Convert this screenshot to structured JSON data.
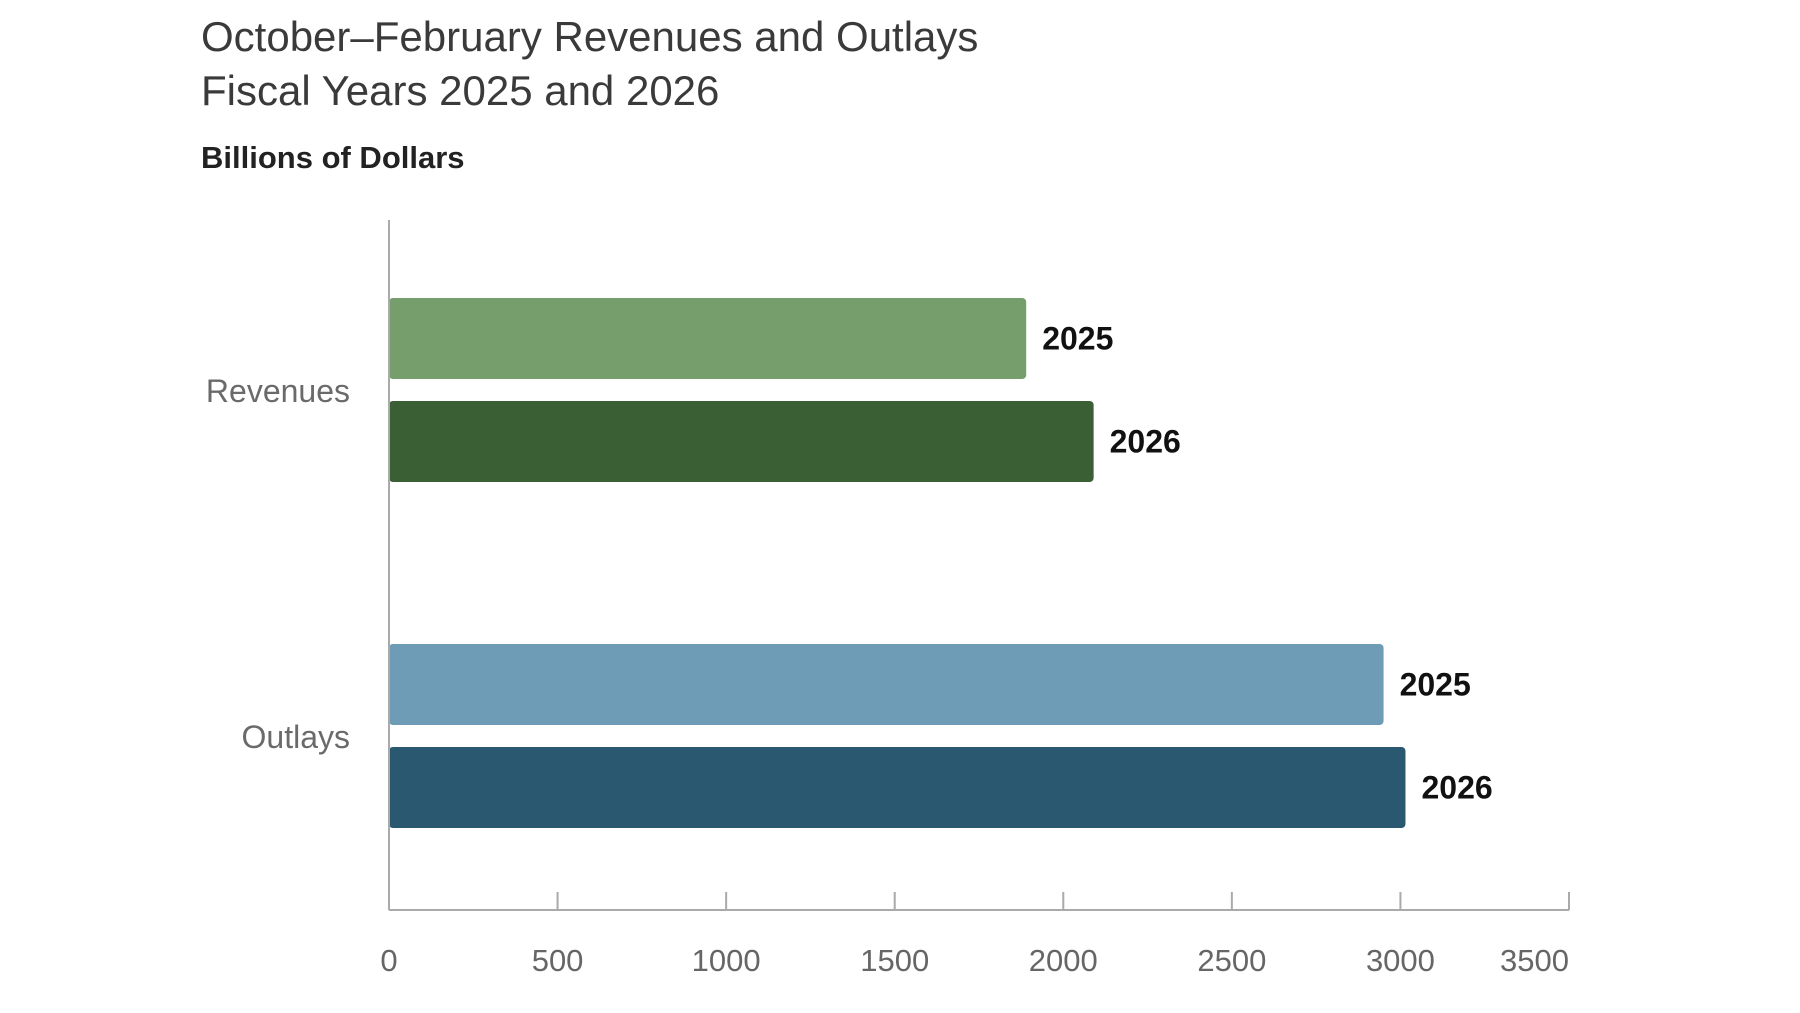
{
  "chart_data": {
    "type": "bar",
    "orientation": "horizontal",
    "title_lines": [
      "October–February Revenues and Outlays",
      "Fiscal Years 2025 and 2026"
    ],
    "units_label": "Billions of Dollars",
    "categories": [
      "Revenues",
      "Outlays"
    ],
    "series": [
      {
        "name": "2025",
        "values": [
          1890,
          2950
        ]
      },
      {
        "name": "2026",
        "values": [
          2090,
          3015
        ]
      }
    ],
    "bar_colors": [
      [
        "#769e6c",
        "#3b5f34"
      ],
      [
        "#6e9bb5",
        "#2a5871"
      ]
    ],
    "xlim": [
      0,
      3500
    ],
    "xticks": [
      "0",
      "500",
      "1000",
      "1500",
      "2000",
      "2500",
      "3000",
      "3500"
    ],
    "axis_color": "#aaaaaa",
    "legend": "data labels beside bars",
    "grid": false
  }
}
